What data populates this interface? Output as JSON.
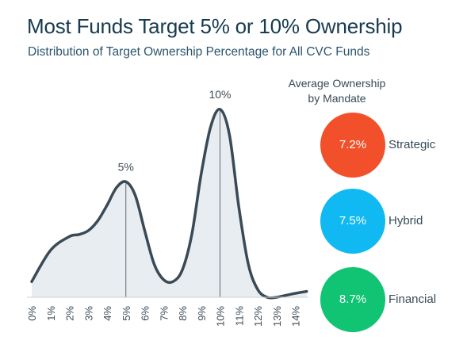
{
  "header": {
    "title": "Most Funds Target 5% or 10% Ownership",
    "subtitle": "Distribution of Target Ownership Percentage for All CVC Funds"
  },
  "legend": {
    "title_line1": "Average Ownership",
    "title_line2": "by Mandate",
    "items": [
      {
        "label": "Strategic",
        "value": "7.2%",
        "color": "#f2502b"
      },
      {
        "label": "Hybrid",
        "value": "7.5%",
        "color": "#10b9f2"
      },
      {
        "label": "Financial",
        "value": "8.7%",
        "color": "#10c473"
      }
    ]
  },
  "chart_data": {
    "type": "area",
    "title": "Most Funds Target 5% or 10% Ownership",
    "subtitle": "Distribution of Target Ownership Percentage for All CVC Funds",
    "categories": [
      "0%",
      "1%",
      "2%",
      "3%",
      "4%",
      "5%",
      "6%",
      "7%",
      "8%",
      "9%",
      "10%",
      "11%",
      "12%",
      "13%",
      "14%"
    ],
    "xlim": [
      0,
      14.6
    ],
    "x": [
      0,
      1,
      2,
      2.5,
      3,
      3.5,
      4,
      4.5,
      5,
      5.5,
      6,
      6.5,
      7,
      7.5,
      8,
      8.5,
      9,
      9.5,
      10,
      10.5,
      11,
      11.5,
      12,
      12.5,
      13,
      13.5,
      14,
      14.6
    ],
    "y": [
      0.08,
      0.24,
      0.31,
      0.32,
      0.34,
      0.39,
      0.47,
      0.56,
      0.59,
      0.52,
      0.34,
      0.17,
      0.09,
      0.08,
      0.14,
      0.32,
      0.63,
      0.87,
      0.96,
      0.83,
      0.46,
      0.17,
      0.04,
      0.0,
      0.0,
      0.01,
      0.02,
      0.03
    ],
    "peaks": [
      {
        "x": 5,
        "label": "5%"
      },
      {
        "x": 10,
        "label": "10%"
      }
    ],
    "ylim": [
      0,
      1
    ],
    "line_color": "#3a4a56",
    "fill_color": "#e8edf1",
    "grid": false
  }
}
